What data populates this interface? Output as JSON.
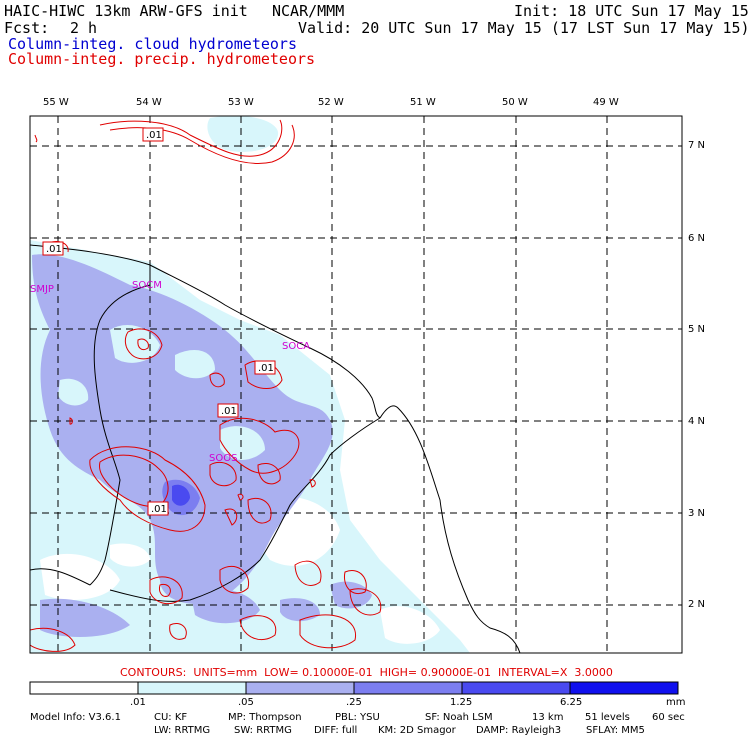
{
  "header": {
    "model": "HAIC-HIWC 13km ARW-GFS init",
    "org": "NCAR/MMM",
    "init": "Init: 18 UTC Sun 17 May 15",
    "fcst_label": "Fcst:",
    "fcst_value": "2 h",
    "valid": "Valid: 20 UTC Sun 17 May 15 (17 LST Sun 17 May 15)",
    "legend_cloud": "Column-integ. cloud hydrometeors",
    "legend_precip": "Column-integ. precip. hydrometeors"
  },
  "colors": {
    "cloud": "#0000d0",
    "precip": "#e00000",
    "station": "#d000d0",
    "scale": [
      "#ffffff",
      "#d8f6fb",
      "#aab0f0",
      "#7c7ef0",
      "#4a4af0",
      "#1010ee"
    ]
  },
  "map": {
    "lon_labels": [
      "55 W",
      "54 W",
      "53 W",
      "52 W",
      "51 W",
      "50 W",
      "49 W"
    ],
    "lat_labels": [
      "7 N",
      "6 N",
      "5 N",
      "4 N",
      "3 N",
      "2 N"
    ],
    "stations": [
      "SMJP",
      "SOCM",
      "SOCA",
      "SOOS"
    ],
    "contour_labels": [
      ".01",
      ".01",
      ".01",
      ".01",
      ".01"
    ]
  },
  "contour_info": "CONTOURS:  UNITS=mm  LOW= 0.10000E-01  HIGH= 0.90000E-01  INTERVAL=X  3.0000",
  "colorbar": {
    "ticks": [
      ".01",
      ".05",
      ".25",
      "1.25",
      "6.25"
    ],
    "unit": "mm"
  },
  "footer": {
    "line1": [
      "Model Info: V3.6.1",
      "CU: KF",
      "MP: Thompson",
      "PBL: YSU",
      "SF: Noah LSM",
      "13 km",
      "51 levels",
      "60 sec"
    ],
    "line2": [
      "LW: RRTMG",
      "SW: RRTMG",
      "DIFF: full",
      "KM: 2D Smagor",
      "DAMP: Rayleigh3",
      "SFLAY: MM5"
    ]
  }
}
